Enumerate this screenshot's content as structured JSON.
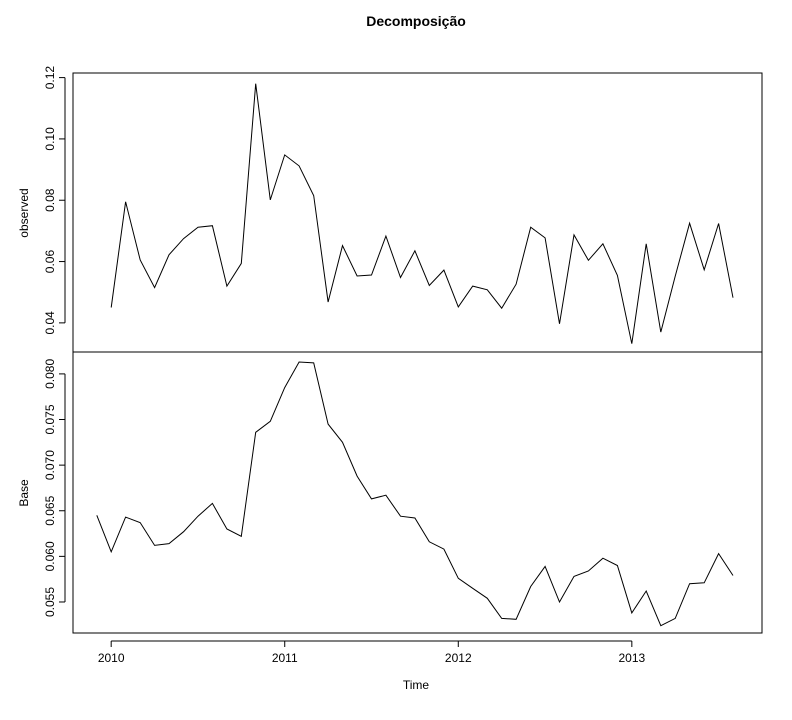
{
  "chart_data": {
    "type": "line",
    "title": "Decomposição",
    "xlabel": "Time",
    "xlim": [
      2009.78,
      2013.75
    ],
    "x_ticks": [
      2010,
      2011,
      2012,
      2013
    ],
    "x_tick_labels": [
      "2010",
      "2011",
      "2012",
      "2013"
    ],
    "panels": [
      {
        "name": "observed",
        "ylabel": "observed",
        "ylim": [
          0.0305,
          0.1215
        ],
        "y_ticks": [
          0.04,
          0.06,
          0.08,
          0.1,
          0.12
        ],
        "y_tick_labels": [
          "0.04",
          "0.06",
          "0.08",
          "0.10",
          "0.12"
        ],
        "series": {
          "x": [
            2010.0,
            2010.083,
            2010.167,
            2010.25,
            2010.333,
            2010.417,
            2010.5,
            2010.583,
            2010.667,
            2010.75,
            2010.833,
            2010.917,
            2011.0,
            2011.083,
            2011.167,
            2011.25,
            2011.333,
            2011.417,
            2011.5,
            2011.583,
            2011.667,
            2011.75,
            2011.833,
            2011.917,
            2012.0,
            2012.083,
            2012.167,
            2012.25,
            2012.333,
            2012.417,
            2012.5,
            2012.583,
            2012.667,
            2012.75,
            2012.833,
            2012.917,
            2013.0,
            2013.083,
            2013.167,
            2013.25,
            2013.333,
            2013.417,
            2013.5,
            2013.583
          ],
          "values": [
            0.045,
            0.0795,
            0.0605,
            0.0515,
            0.0622,
            0.0675,
            0.0712,
            0.0717,
            0.052,
            0.0594,
            0.118,
            0.0801,
            0.0948,
            0.0912,
            0.0815,
            0.0468,
            0.0652,
            0.0553,
            0.0556,
            0.0683,
            0.0548,
            0.0635,
            0.0522,
            0.0572,
            0.0452,
            0.052,
            0.0508,
            0.0448,
            0.0526,
            0.0712,
            0.0677,
            0.0397,
            0.0687,
            0.0604,
            0.0658,
            0.0555,
            0.0332,
            0.0658,
            0.037,
            0.0552,
            0.0725,
            0.0573,
            0.0724,
            0.0482
          ]
        }
      },
      {
        "name": "Base",
        "ylabel": "Base",
        "ylim": [
          0.0516,
          0.0824
        ],
        "y_ticks": [
          0.055,
          0.06,
          0.065,
          0.07,
          0.075,
          0.08
        ],
        "y_tick_labels": [
          "0.055",
          "0.060",
          "0.065",
          "0.070",
          "0.075",
          "0.080"
        ],
        "series": {
          "x": [
            2009.917,
            2010.0,
            2010.083,
            2010.167,
            2010.25,
            2010.333,
            2010.417,
            2010.5,
            2010.583,
            2010.667,
            2010.75,
            2010.833,
            2010.917,
            2011.0,
            2011.083,
            2011.167,
            2011.25,
            2011.333,
            2011.417,
            2011.5,
            2011.583,
            2011.667,
            2011.75,
            2011.833,
            2011.917,
            2012.0,
            2012.083,
            2012.167,
            2012.25,
            2012.333,
            2012.417,
            2012.5,
            2012.583,
            2012.667,
            2012.75,
            2012.833,
            2012.917,
            2013.0,
            2013.083,
            2013.167,
            2013.25,
            2013.333,
            2013.417,
            2013.5,
            2013.583
          ],
          "values": [
            0.0645,
            0.0605,
            0.0643,
            0.0637,
            0.0612,
            0.0614,
            0.0627,
            0.0644,
            0.0658,
            0.063,
            0.0622,
            0.0736,
            0.0748,
            0.0785,
            0.0813,
            0.0812,
            0.0745,
            0.0725,
            0.0688,
            0.0663,
            0.0667,
            0.0644,
            0.0642,
            0.0616,
            0.0608,
            0.0576,
            0.0565,
            0.0554,
            0.0532,
            0.0531,
            0.0567,
            0.0589,
            0.055,
            0.0578,
            0.0584,
            0.0598,
            0.059,
            0.0538,
            0.0562,
            0.0524,
            0.0532,
            0.057,
            0.0571,
            0.0603,
            0.0579
          ]
        }
      }
    ]
  }
}
